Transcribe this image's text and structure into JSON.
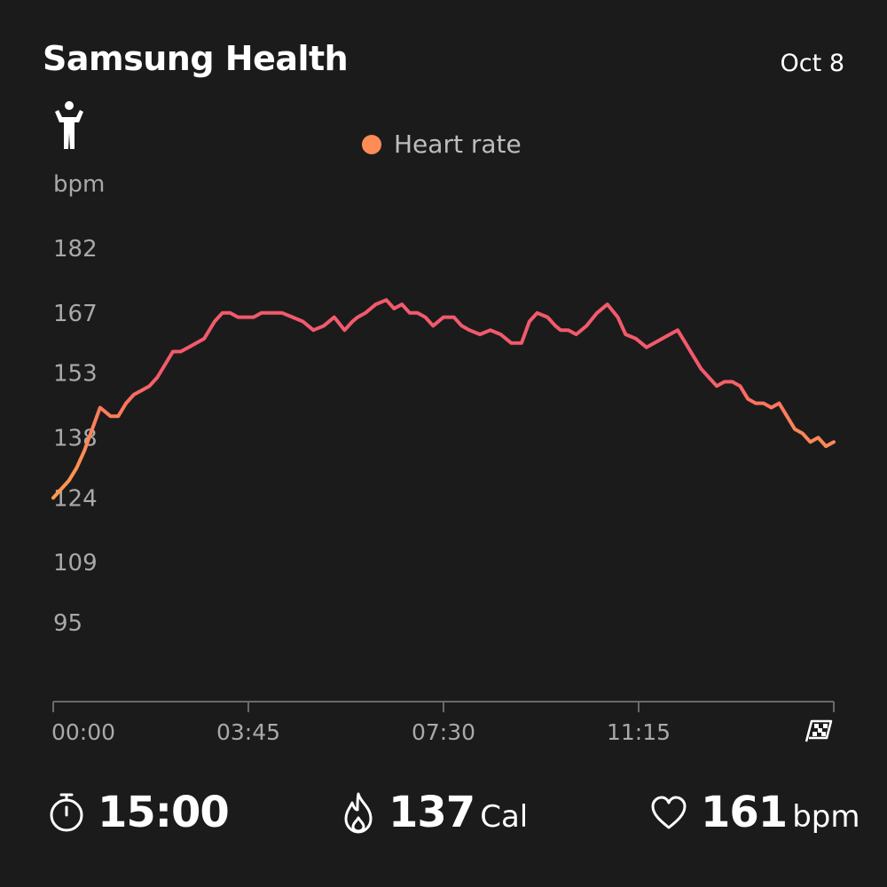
{
  "header": {
    "title": "Samsung Health",
    "date": "Oct 8"
  },
  "icons": {
    "workout": "strength-workout-icon",
    "finish": "finish-flag-icon",
    "timer": "stopwatch-icon",
    "calories": "flame-icon",
    "heart": "heart-icon"
  },
  "colors": {
    "background": "#1c1b1c",
    "line_low": "#ff9a4d",
    "line_high": "#f25a6c",
    "legend_dot": "#ff8c55"
  },
  "stats": {
    "duration": "15:00",
    "calories_value": "137",
    "calories_unit": "Cal",
    "heart_value": "161",
    "heart_unit": "bpm"
  },
  "chart_data": {
    "type": "line",
    "legend": [
      "Heart rate"
    ],
    "ylabel": "bpm",
    "yticks": [
      182,
      167,
      153,
      138,
      124,
      109,
      95
    ],
    "xtick_labels": [
      "00:00",
      "03:45",
      "07:30",
      "11:15"
    ],
    "xticks_min": [
      0,
      3.75,
      7.5,
      11.25
    ],
    "xlim": [
      0,
      15
    ],
    "ylim": [
      95,
      182
    ],
    "series": [
      {
        "name": "Heart rate",
        "x": [
          0,
          0.15,
          0.3,
          0.45,
          0.6,
          0.75,
          0.9,
          1.0,
          1.1,
          1.25,
          1.4,
          1.55,
          1.7,
          1.85,
          2.0,
          2.15,
          2.3,
          2.45,
          2.6,
          2.75,
          2.9,
          3.0,
          3.1,
          3.25,
          3.4,
          3.55,
          3.7,
          3.85,
          4.0,
          4.2,
          4.4,
          4.6,
          4.8,
          5.0,
          5.2,
          5.4,
          5.6,
          5.75,
          5.85,
          6.0,
          6.2,
          6.4,
          6.55,
          6.7,
          6.85,
          7.0,
          7.15,
          7.3,
          7.5,
          7.7,
          7.85,
          8.0,
          8.2,
          8.4,
          8.6,
          8.8,
          9.0,
          9.15,
          9.3,
          9.5,
          9.65,
          9.75,
          9.9,
          10.05,
          10.25,
          10.45,
          10.65,
          10.85,
          11.0,
          11.2,
          11.4,
          11.55,
          11.7,
          11.85,
          12.0,
          12.15,
          12.3,
          12.45,
          12.6,
          12.75,
          12.9,
          13.05,
          13.2,
          13.35,
          13.5,
          13.65,
          13.8,
          13.95,
          14.1,
          14.25,
          14.4,
          14.55,
          14.7,
          14.85,
          15.0
        ],
        "values": [
          124,
          126,
          128,
          131,
          135,
          140,
          145,
          144,
          143,
          143,
          146,
          148,
          149,
          150,
          152,
          155,
          158,
          158,
          159,
          160,
          161,
          163,
          165,
          167,
          167,
          166,
          166,
          166,
          167,
          167,
          167,
          166,
          165,
          163,
          164,
          166,
          163,
          165,
          166,
          167,
          169,
          170,
          168,
          169,
          167,
          167,
          166,
          164,
          166,
          166,
          164,
          163,
          162,
          163,
          162,
          160,
          160,
          165,
          167,
          166,
          164,
          163,
          163,
          162,
          164,
          167,
          169,
          166,
          162,
          161,
          159,
          160,
          161,
          162,
          163,
          160,
          157,
          154,
          152,
          150,
          151,
          151,
          150,
          147,
          146,
          146,
          145,
          146,
          143,
          140,
          139,
          137,
          138,
          136,
          137
        ]
      }
    ],
    "grid": false
  }
}
